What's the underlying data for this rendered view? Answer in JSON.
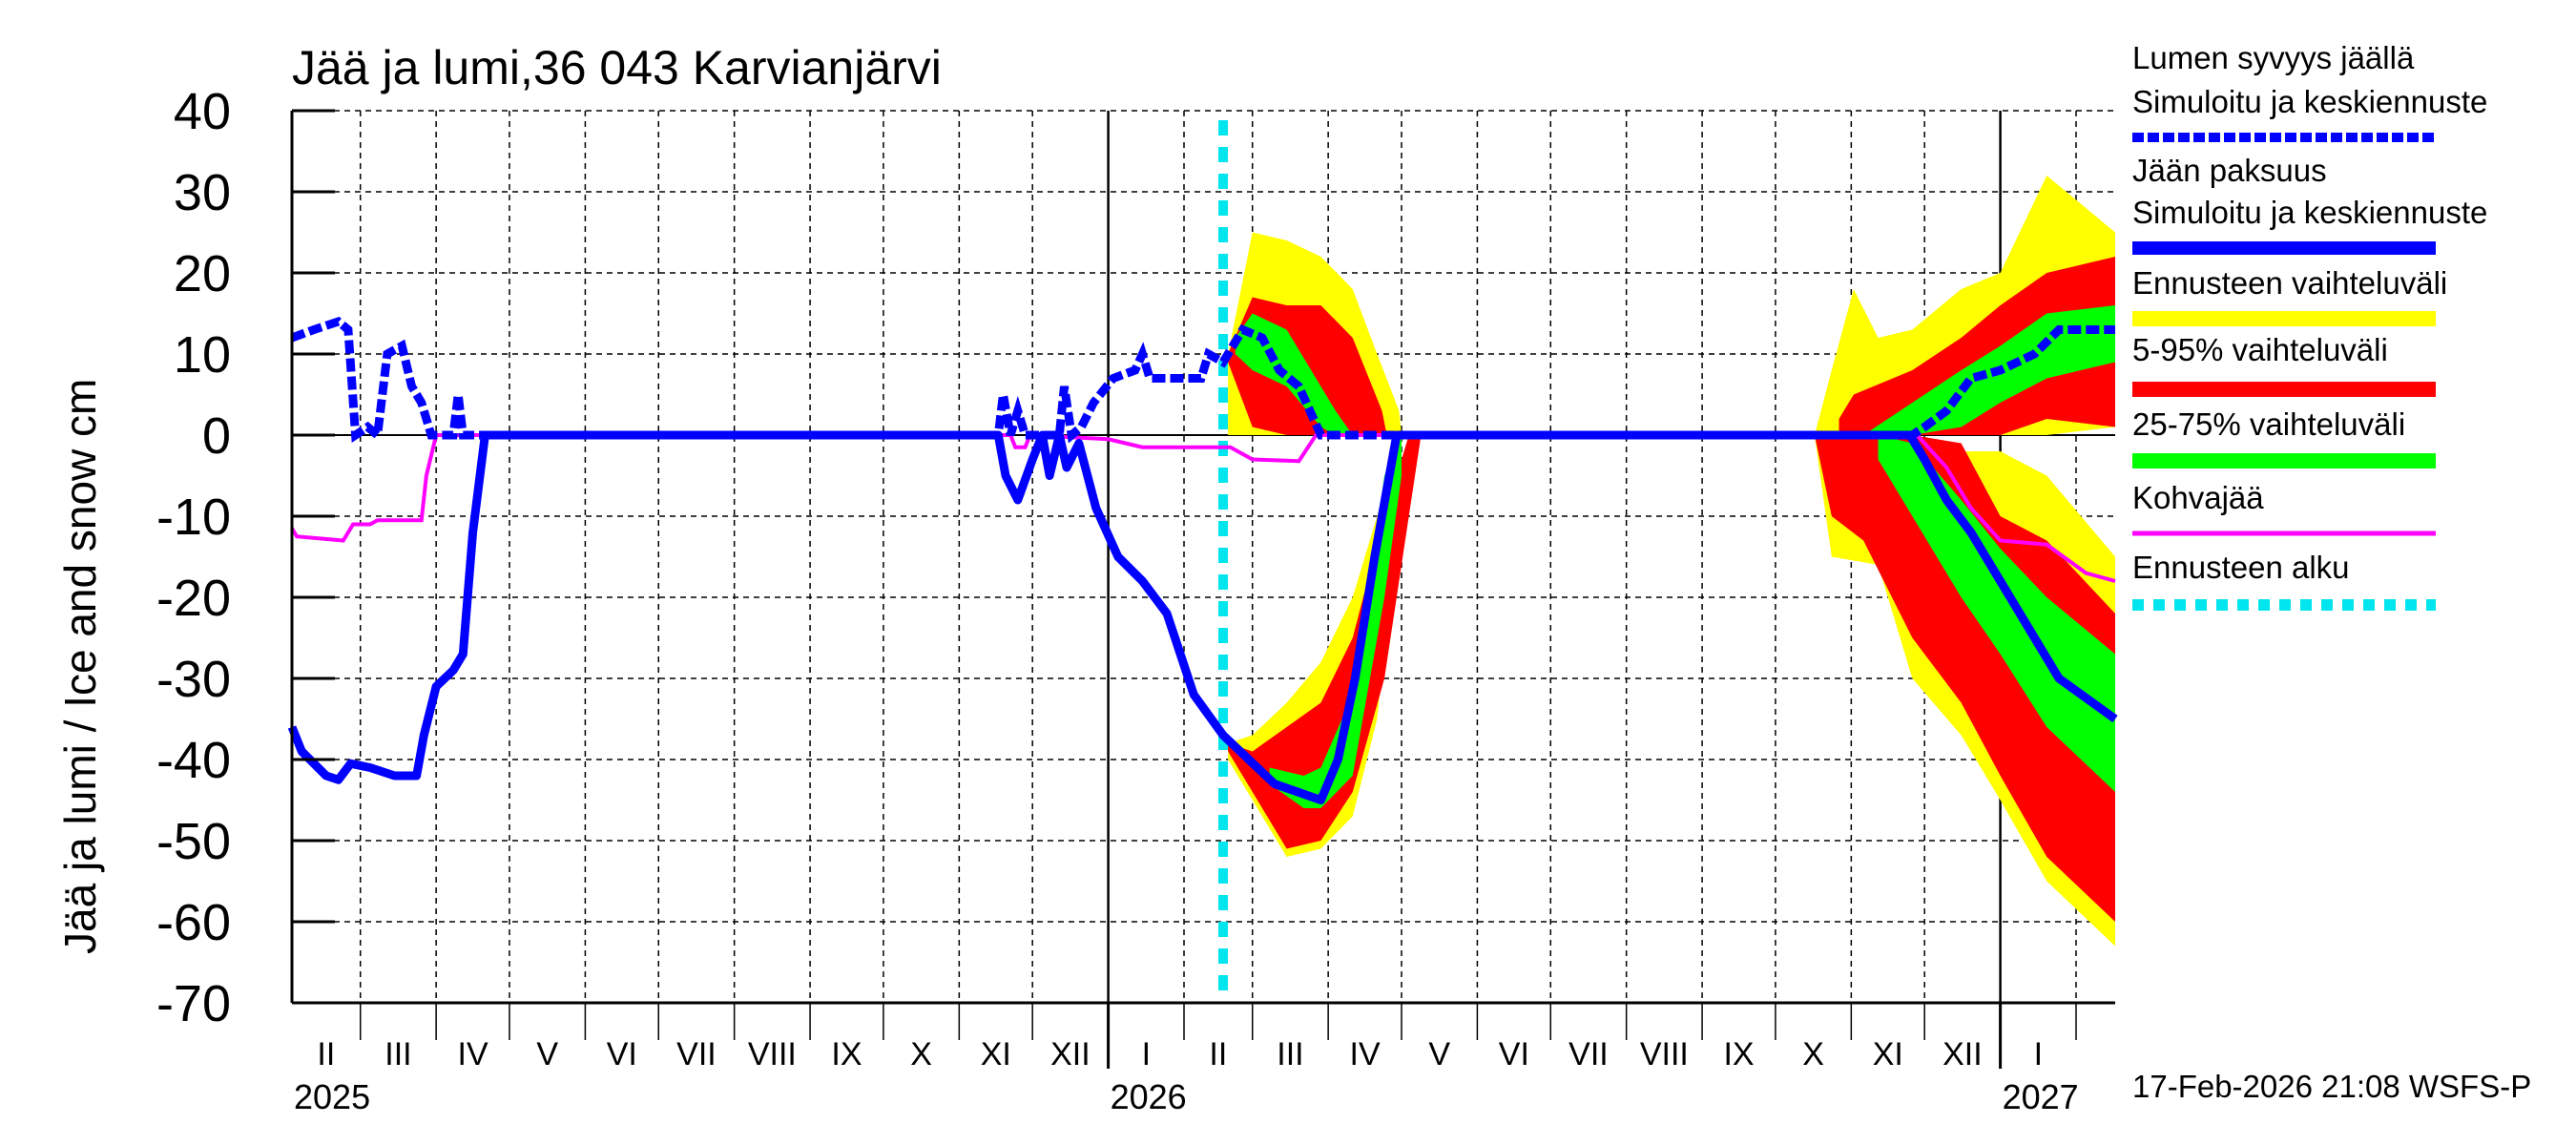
{
  "chart_data": {
    "type": "area",
    "title": "Jää ja lumi,36 043 Karvianjärvi",
    "ylabel": "Jää ja lumi / Ice and snow    cm",
    "ylim": [
      -70,
      40
    ],
    "yticks": [
      40,
      30,
      20,
      10,
      0,
      -10,
      -20,
      -30,
      -40,
      -50,
      -60,
      -70
    ],
    "xlim": [
      "2025-02-01",
      "2027-02-17"
    ],
    "grid": true,
    "legend_position": "right",
    "month_labels": [
      "II",
      "III",
      "IV",
      "V",
      "VI",
      "VII",
      "VIII",
      "IX",
      "X",
      "XI",
      "XII",
      "I",
      "II",
      "III",
      "IV",
      "V",
      "VI",
      "VII",
      "VIII",
      "IX",
      "X",
      "XI",
      "XII",
      "I"
    ],
    "year_labels": [
      {
        "label": "2025",
        "date": "2025-02-01"
      },
      {
        "label": "2026",
        "date": "2026-01-01"
      },
      {
        "label": "2027",
        "date": "2027-01-01"
      }
    ],
    "forecast_start": "2026-02-17",
    "timestamp": "17-Feb-2026 21:08 WSFS-P",
    "colors": {
      "snow": "#0000ff",
      "ice": "#0000ff",
      "range_full": "#ffff00",
      "range_5_95": "#ff0000",
      "range_25_75": "#00ff00",
      "slush": "#ff00ff",
      "forecast_start": "#00e5ee"
    },
    "legend": [
      {
        "label": "Lumen syvyys jäällä",
        "sub": "Simuloitu ja keskiennuste",
        "style": "snow"
      },
      {
        "label": "Jään paksuus",
        "sub": "Simuloitu ja keskiennuste",
        "style": "ice"
      },
      {
        "label": "Ennusteen vaihteluväli",
        "style": "range_full"
      },
      {
        "label": "5-95% vaihteluväli",
        "style": "range_5_95"
      },
      {
        "label": "25-75% vaihteluväli",
        "style": "range_25_75"
      },
      {
        "label": "Kohvajää",
        "style": "slush"
      },
      {
        "label": "Ennusteen alku",
        "style": "forecast_start"
      }
    ],
    "bands": {
      "range_full": [
        [
          [
            "2026-02-19",
            0,
            10
          ],
          [
            "2026-03-01",
            0,
            25
          ],
          [
            "2026-03-15",
            0,
            24
          ],
          [
            "2026-03-29",
            0,
            22
          ],
          [
            "2026-04-11",
            0,
            18
          ],
          [
            "2026-04-21",
            0,
            10
          ],
          [
            "2026-04-30",
            0,
            3
          ],
          [
            "2026-05-01",
            0,
            0
          ]
        ],
        [
          [
            "2026-02-19",
            -40,
            -38
          ],
          [
            "2026-03-01",
            -45,
            -37
          ],
          [
            "2026-03-15",
            -52,
            -33
          ],
          [
            "2026-03-29",
            -51,
            -28
          ],
          [
            "2026-04-11",
            -47,
            -20
          ],
          [
            "2026-04-21",
            -35,
            -10
          ],
          [
            "2026-04-30",
            -10,
            0
          ],
          [
            "2026-05-01",
            0,
            0
          ]
        ],
        [
          [
            "2026-10-17",
            0,
            0
          ],
          [
            "2026-10-24",
            0,
            8
          ],
          [
            "2026-11-02",
            0,
            18
          ],
          [
            "2026-11-12",
            0,
            12
          ],
          [
            "2026-11-26",
            0,
            13
          ],
          [
            "2026-12-16",
            0,
            18
          ],
          [
            "2027-01-01",
            0,
            20
          ],
          [
            "2027-01-20",
            0,
            32
          ],
          [
            "2027-02-17",
            1,
            25
          ]
        ],
        [
          [
            "2026-10-17",
            0,
            0
          ],
          [
            "2026-10-24",
            -15,
            0
          ],
          [
            "2026-11-12",
            -16,
            -1
          ],
          [
            "2026-11-26",
            -30,
            -2
          ],
          [
            "2026-12-16",
            -37,
            -2
          ],
          [
            "2027-01-01",
            -45,
            -2
          ],
          [
            "2027-01-20",
            -55,
            -5
          ],
          [
            "2027-02-17",
            -63,
            -15
          ]
        ]
      ],
      "range_5_95": [
        [
          [
            "2026-02-19",
            9,
            10
          ],
          [
            "2026-03-01",
            1,
            17
          ],
          [
            "2026-03-15",
            0,
            16
          ],
          [
            "2026-03-29",
            0,
            16
          ],
          [
            "2026-04-11",
            0,
            12
          ],
          [
            "2026-04-23",
            0,
            3
          ],
          [
            "2026-04-25",
            0,
            0
          ]
        ],
        [
          [
            "2026-02-19",
            -39,
            -38
          ],
          [
            "2026-03-01",
            -44,
            -39
          ],
          [
            "2026-03-15",
            -51,
            -36
          ],
          [
            "2026-03-29",
            -50,
            -33
          ],
          [
            "2026-04-11",
            -44,
            -25
          ],
          [
            "2026-04-24",
            -30,
            -10
          ],
          [
            "2026-05-04",
            -10,
            0
          ],
          [
            "2026-05-09",
            0,
            0
          ]
        ],
        [
          [
            "2026-10-27",
            0,
            2
          ],
          [
            "2026-11-02",
            0,
            5
          ],
          [
            "2026-11-26",
            0,
            8
          ],
          [
            "2026-12-16",
            0,
            12
          ],
          [
            "2027-01-01",
            0,
            16
          ],
          [
            "2027-01-20",
            2,
            20
          ],
          [
            "2027-02-17",
            1,
            22
          ]
        ],
        [
          [
            "2026-10-17",
            0,
            0
          ],
          [
            "2026-10-24",
            -10,
            0
          ],
          [
            "2026-11-06",
            -13,
            0
          ],
          [
            "2026-11-26",
            -25,
            0
          ],
          [
            "2026-12-16",
            -33,
            -1
          ],
          [
            "2027-01-01",
            -42,
            -10
          ],
          [
            "2027-01-20",
            -52,
            -13
          ],
          [
            "2027-02-17",
            -60,
            -22
          ]
        ]
      ],
      "range_25_75": [
        [
          [
            "2026-02-22",
            10,
            12
          ],
          [
            "2026-03-01",
            8,
            15
          ],
          [
            "2026-03-15",
            6,
            13
          ],
          [
            "2026-03-29",
            1,
            6
          ],
          [
            "2026-04-04",
            0,
            3
          ],
          [
            "2026-04-11",
            0,
            0
          ]
        ],
        [
          [
            "2026-03-08",
            -43,
            -41
          ],
          [
            "2026-03-22",
            -46,
            -42
          ],
          [
            "2026-03-29",
            -46,
            -41
          ],
          [
            "2026-04-11",
            -42,
            -32
          ],
          [
            "2026-04-24",
            -20,
            -5
          ],
          [
            "2026-05-01",
            -5,
            0
          ]
        ],
        [
          [
            "2026-11-06",
            0,
            0
          ],
          [
            "2026-11-26",
            0,
            4
          ],
          [
            "2026-12-16",
            1,
            8
          ],
          [
            "2027-01-01",
            4,
            11
          ],
          [
            "2027-01-20",
            7,
            15
          ],
          [
            "2027-02-17",
            9,
            16
          ]
        ],
        [
          [
            "2026-11-12",
            -3,
            0
          ],
          [
            "2026-11-26",
            -10,
            -1
          ],
          [
            "2026-12-16",
            -20,
            -8
          ],
          [
            "2027-01-01",
            -27,
            -14
          ],
          [
            "2027-01-20",
            -36,
            -20
          ],
          [
            "2027-02-17",
            -44,
            -27
          ]
        ]
      ]
    },
    "series": [
      {
        "name": "Lumen syvyys jäällä",
        "style": "snow",
        "points": [
          [
            "2025-02-01",
            12
          ],
          [
            "2025-02-10",
            13
          ],
          [
            "2025-02-20",
            14
          ],
          [
            "2025-02-24",
            13
          ],
          [
            "2025-02-27",
            0
          ],
          [
            "2025-03-04",
            1
          ],
          [
            "2025-03-08",
            0
          ],
          [
            "2025-03-12",
            10
          ],
          [
            "2025-03-18",
            11
          ],
          [
            "2025-03-22",
            6
          ],
          [
            "2025-03-26",
            4
          ],
          [
            "2025-03-30",
            0
          ],
          [
            "2025-04-08",
            0
          ],
          [
            "2025-04-10",
            5
          ],
          [
            "2025-04-12",
            0
          ],
          [
            "2025-11-17",
            0
          ],
          [
            "2025-11-19",
            5
          ],
          [
            "2025-11-22",
            0
          ],
          [
            "2025-11-25",
            3
          ],
          [
            "2025-11-28",
            0
          ],
          [
            "2025-12-12",
            0
          ],
          [
            "2025-12-14",
            6
          ],
          [
            "2025-12-17",
            0
          ],
          [
            "2025-12-21",
            1
          ],
          [
            "2025-12-26",
            4
          ],
          [
            "2026-01-03",
            7
          ],
          [
            "2026-01-12",
            8
          ],
          [
            "2026-01-15",
            10
          ],
          [
            "2026-01-18",
            7
          ],
          [
            "2026-02-08",
            7
          ],
          [
            "2026-02-11",
            10
          ],
          [
            "2026-02-17",
            9
          ],
          [
            "2026-02-25",
            13
          ],
          [
            "2026-03-05",
            12
          ],
          [
            "2026-03-12",
            8
          ],
          [
            "2026-03-20",
            6
          ],
          [
            "2026-03-29",
            0
          ],
          [
            "2026-11-26",
            0
          ],
          [
            "2026-12-01",
            1
          ],
          [
            "2026-12-10",
            3
          ],
          [
            "2026-12-20",
            7
          ],
          [
            "2027-01-01",
            8
          ],
          [
            "2027-01-15",
            10
          ],
          [
            "2027-01-25",
            13
          ],
          [
            "2027-02-17",
            13
          ]
        ]
      },
      {
        "name": "Jään paksuus",
        "style": "ice",
        "points": [
          [
            "2025-02-01",
            -36
          ],
          [
            "2025-02-05",
            -39
          ],
          [
            "2025-02-15",
            -42
          ],
          [
            "2025-02-20",
            -42.5
          ],
          [
            "2025-02-25",
            -40.5
          ],
          [
            "2025-03-05",
            -41
          ],
          [
            "2025-03-15",
            -42
          ],
          [
            "2025-03-24",
            -42
          ],
          [
            "2025-03-27",
            -37
          ],
          [
            "2025-04-01",
            -31
          ],
          [
            "2025-04-08",
            -29
          ],
          [
            "2025-04-12",
            -27
          ],
          [
            "2025-04-16",
            -12
          ],
          [
            "2025-04-21",
            0
          ],
          [
            "2025-11-17",
            0
          ],
          [
            "2025-11-20",
            -5
          ],
          [
            "2025-11-25",
            -8
          ],
          [
            "2025-12-01",
            -3
          ],
          [
            "2025-12-05",
            0
          ],
          [
            "2025-12-08",
            -5
          ],
          [
            "2025-12-12",
            0
          ],
          [
            "2025-12-15",
            -4
          ],
          [
            "2025-12-20",
            -1
          ],
          [
            "2025-12-27",
            -9
          ],
          [
            "2026-01-05",
            -15
          ],
          [
            "2026-01-15",
            -18
          ],
          [
            "2026-01-25",
            -22
          ],
          [
            "2026-02-05",
            -32
          ],
          [
            "2026-02-17",
            -37
          ],
          [
            "2026-03-10",
            -43
          ],
          [
            "2026-03-29",
            -45
          ],
          [
            "2026-04-05",
            -40
          ],
          [
            "2026-04-12",
            -30
          ],
          [
            "2026-04-20",
            -15
          ],
          [
            "2026-04-29",
            0
          ],
          [
            "2026-11-25",
            0
          ],
          [
            "2026-12-01",
            -3
          ],
          [
            "2026-12-10",
            -8
          ],
          [
            "2026-12-20",
            -12
          ],
          [
            "2027-01-01",
            -18
          ],
          [
            "2027-01-15",
            -25
          ],
          [
            "2027-01-25",
            -30
          ],
          [
            "2027-02-17",
            -35
          ]
        ]
      },
      {
        "name": "Kohvajää",
        "style": "slush",
        "points": [
          [
            "2025-02-01",
            -11.5
          ],
          [
            "2025-02-03",
            -12.5
          ],
          [
            "2025-02-22",
            -13
          ],
          [
            "2025-02-26",
            -11
          ],
          [
            "2025-03-05",
            -11
          ],
          [
            "2025-03-08",
            -10.5
          ],
          [
            "2025-03-26",
            -10.5
          ],
          [
            "2025-03-28",
            -5
          ],
          [
            "2025-04-01",
            0
          ],
          [
            "2025-11-22",
            0
          ],
          [
            "2025-11-24",
            -1.5
          ],
          [
            "2025-11-28",
            -1.5
          ],
          [
            "2025-11-30",
            0
          ],
          [
            "2026-01-01",
            -0.5
          ],
          [
            "2026-01-15",
            -1.5
          ],
          [
            "2026-02-20",
            -1.5
          ],
          [
            "2026-03-01",
            -3
          ],
          [
            "2026-03-20",
            -3.2
          ],
          [
            "2026-03-27",
            0
          ],
          [
            "2026-11-28",
            0
          ],
          [
            "2026-12-10",
            -4
          ],
          [
            "2026-12-20",
            -9
          ],
          [
            "2027-01-01",
            -13
          ],
          [
            "2027-01-20",
            -13.5
          ],
          [
            "2027-02-05",
            -17
          ],
          [
            "2027-02-17",
            -18
          ]
        ]
      }
    ]
  }
}
